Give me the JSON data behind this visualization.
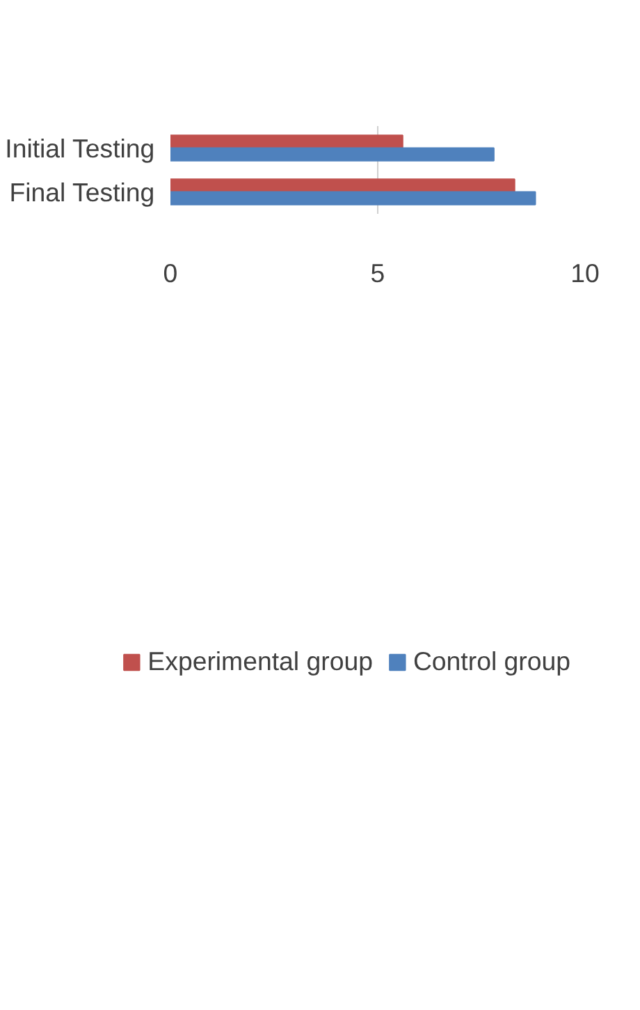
{
  "chart_data": {
    "type": "bar",
    "orientation": "horizontal",
    "categories": [
      "Initial Testing",
      "Final Testing"
    ],
    "series": [
      {
        "name": "Experimental group",
        "color": "#c0504d",
        "values": [
          5.6,
          8.3
        ]
      },
      {
        "name": "Control group",
        "color": "#4f81bd",
        "values": [
          7.8,
          8.8
        ]
      }
    ],
    "xlim": [
      0,
      10
    ],
    "xticks": [
      0,
      5,
      10
    ],
    "grid": "x",
    "legend": "bottom"
  }
}
